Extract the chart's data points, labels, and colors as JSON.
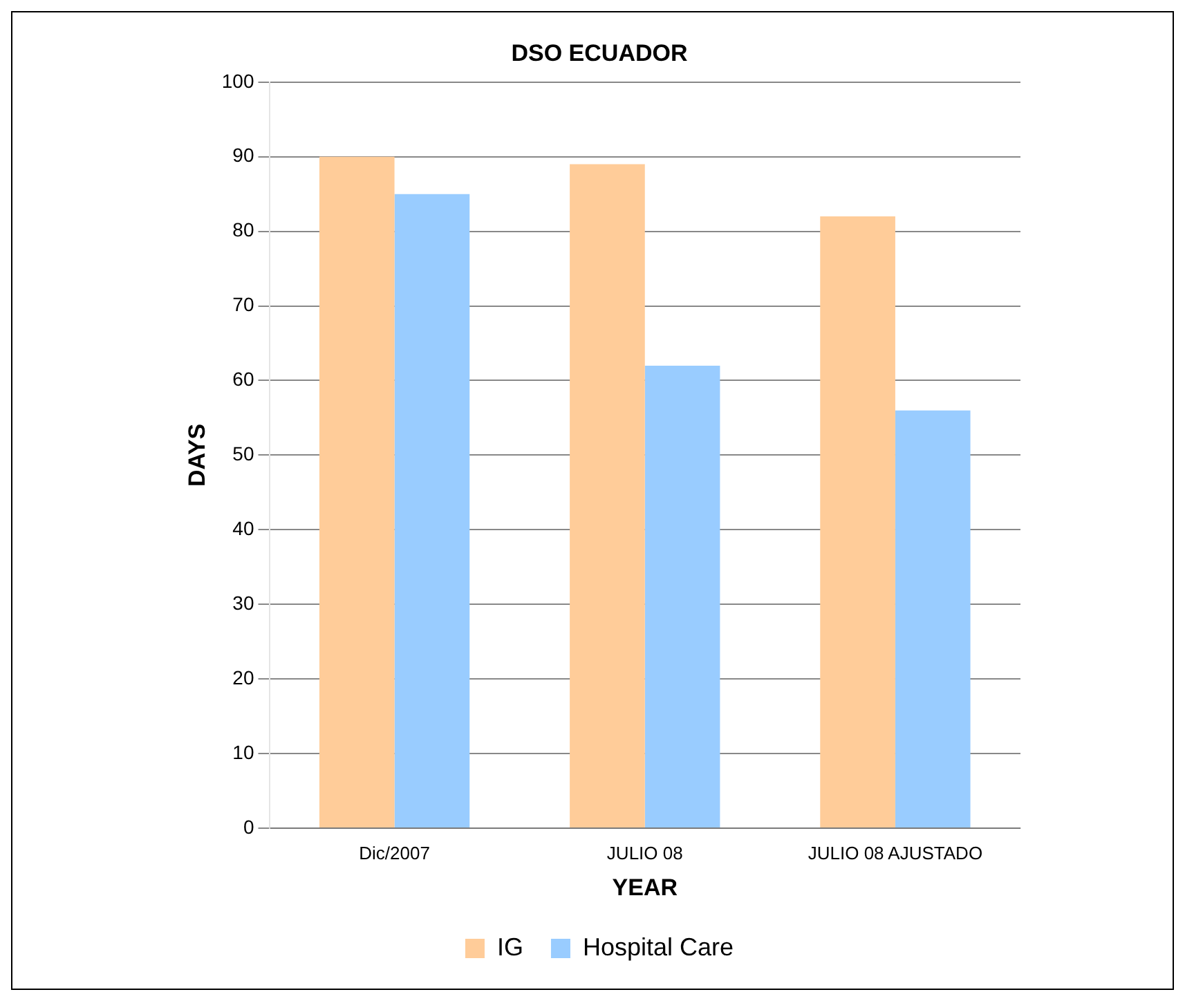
{
  "chart_data": {
    "type": "bar",
    "title": "DSO ECUADOR",
    "xlabel": "YEAR",
    "ylabel": "DAYS",
    "categories": [
      "Dic/2007",
      "JULIO 08",
      "JULIO 08 AJUSTADO"
    ],
    "series": [
      {
        "name": "IG",
        "color": "#ffcc99",
        "values": [
          90,
          89,
          82
        ]
      },
      {
        "name": "Hospital Care",
        "color": "#99ccff",
        "values": [
          85,
          62,
          56
        ]
      }
    ],
    "ylim": [
      0,
      100
    ],
    "yticks": [
      0,
      10,
      20,
      30,
      40,
      50,
      60,
      70,
      80,
      90,
      100
    ],
    "grid": "y",
    "legend": "bottom"
  }
}
